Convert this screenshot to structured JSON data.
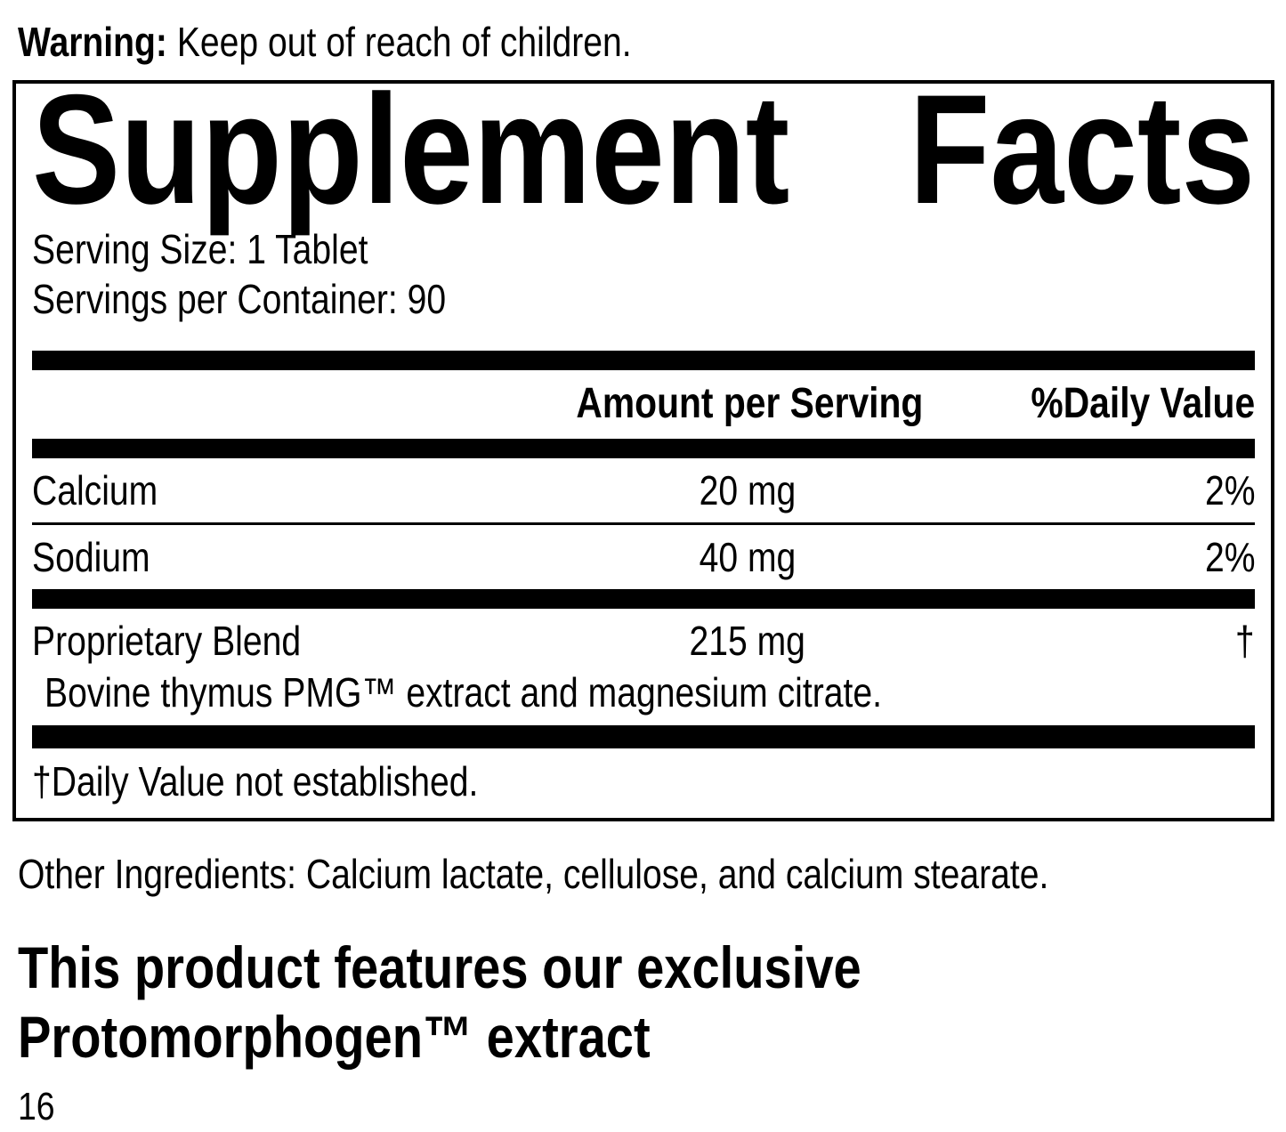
{
  "colors": {
    "text": "#000000",
    "background": "#ffffff"
  },
  "warning": {
    "label": "Warning:",
    "text": "Keep out of reach of children."
  },
  "panel": {
    "title_word1": "Supplement",
    "title_word2": "Facts",
    "serving_size": "Serving Size: 1 Tablet",
    "servings_per_container": "Servings per Container: 90",
    "columns": {
      "amount": "Amount per Serving",
      "daily_value": "%Daily Value"
    },
    "rows": [
      {
        "name": "Calcium",
        "amount": "20 mg",
        "dv": "2%"
      },
      {
        "name": "Sodium",
        "amount": "40 mg",
        "dv": "2%"
      },
      {
        "name": "Proprietary Blend",
        "amount": "215 mg",
        "dv": "†",
        "description": "Bovine thymus PMG™ extract and magnesium citrate."
      }
    ],
    "footnote": "†Daily Value not established."
  },
  "other_ingredients": "Other Ingredients: Calcium lactate, cellulose, and calcium stearate.",
  "headline": {
    "line1": "This product features our exclusive",
    "line2": "Protomorphogen™ extract"
  },
  "page_number": "16"
}
